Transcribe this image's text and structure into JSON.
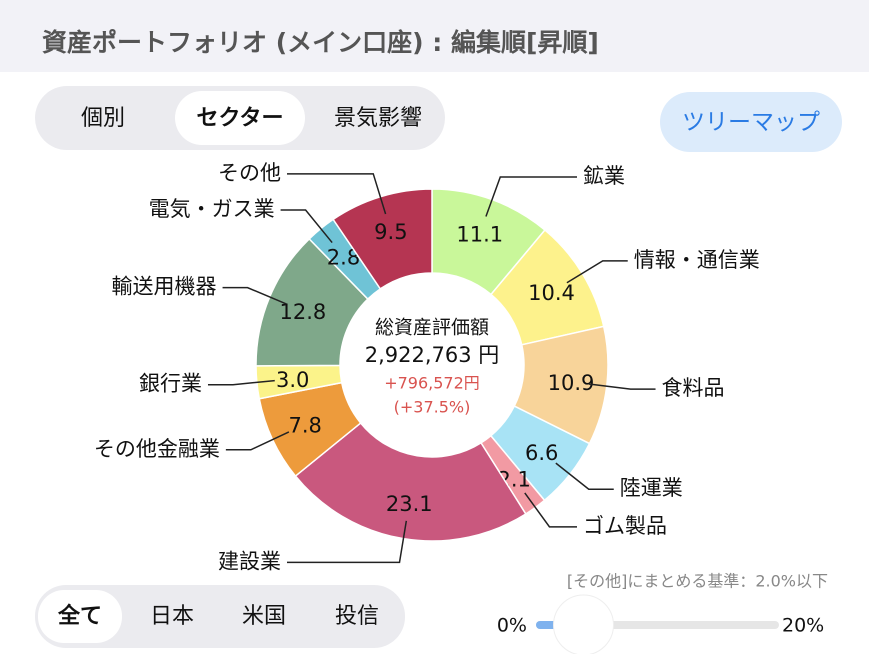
{
  "header": {
    "title": "資産ポートフォリオ (メイン口座) : 編集順[昇順]"
  },
  "view_tabs": {
    "items": [
      "個別",
      "セクター",
      "景気影響"
    ],
    "selected": 1
  },
  "treemap_button": {
    "label": "ツリーマップ"
  },
  "chart_data": {
    "type": "donut",
    "categories": [
      "鉱業",
      "情報・通信業",
      "食料品",
      "陸運業",
      "ゴム製品",
      "建設業",
      "その他金融業",
      "銀行業",
      "輸送用機器",
      "電気・ガス業",
      "その他"
    ],
    "values": [
      11.1,
      10.4,
      10.9,
      6.6,
      2.1,
      23.1,
      7.8,
      3.0,
      12.8,
      2.8,
      9.5
    ],
    "value_labels": [
      "11.1",
      "10.4",
      "10.9",
      "6.6",
      "2.1",
      "23.1",
      "7.8",
      "3.0",
      "12.8",
      "2.8",
      "9.5"
    ],
    "colors": [
      "#c9f79a",
      "#fdf28c",
      "#f8d49a",
      "#a8e3f5",
      "#f29aa3",
      "#c9587e",
      "#ed9b3c",
      "#fbf38a",
      "#7fa88a",
      "#6fc3d6",
      "#b53552"
    ],
    "center": {
      "label": "総資産評価額",
      "total": "2,922,763 円",
      "gain": "+796,572円",
      "gain_pct": "(+37.5%)"
    }
  },
  "region_tabs": {
    "items": [
      "全て",
      "日本",
      "米国",
      "投信"
    ],
    "selected": 0
  },
  "threshold": {
    "note": "[その他]にまとめる基準：2.0%以下",
    "min": {
      "value": 0,
      "label": "0%"
    },
    "max": {
      "value": 20,
      "label": "20%"
    },
    "value": 2
  }
}
